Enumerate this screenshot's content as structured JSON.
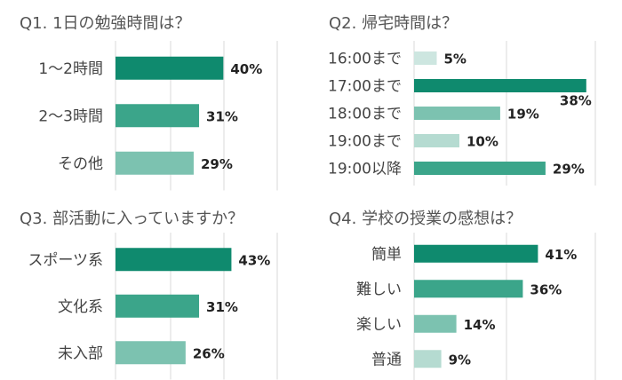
{
  "colors": {
    "c1": "#0f8a6e",
    "c2": "#3ba58a",
    "c3": "#7cc2b0",
    "c4": "#b5dbd1"
  },
  "chart_data": [
    {
      "type": "bar",
      "orientation": "horizontal",
      "title": "Q1. 1日の勉強時間は？",
      "categories": [
        "1〜2時間",
        "2〜3時間",
        "その他"
      ],
      "values": [
        40,
        31,
        29
      ],
      "value_labels": [
        "40%",
        "31%",
        "29%"
      ],
      "colors": [
        "#0f8a6e",
        "#3ba58a",
        "#7cc2b0"
      ],
      "xlim": [
        0,
        60
      ],
      "grid": true
    },
    {
      "type": "bar",
      "orientation": "horizontal",
      "title": "Q2. 帰宅時間は？",
      "categories": [
        "16:00まで",
        "17:00まで",
        "18:00まで",
        "19:00まで",
        "19:00以降"
      ],
      "values": [
        5,
        38,
        19,
        10,
        29
      ],
      "value_labels": [
        "5%",
        "38%",
        "19%",
        "10%",
        "29%"
      ],
      "colors": [
        "#cde6e0",
        "#0f8a6e",
        "#7cc2b0",
        "#b5dbd1",
        "#3ba58a"
      ],
      "xlim": [
        0,
        40
      ],
      "grid": true
    },
    {
      "type": "bar",
      "orientation": "horizontal",
      "title": "Q3. 部活動に入っていますか？",
      "categories": [
        "スポーツ系",
        "文化系",
        "未入部"
      ],
      "values": [
        43,
        31,
        26
      ],
      "value_labels": [
        "43%",
        "31%",
        "26%"
      ],
      "colors": [
        "#0f8a6e",
        "#3ba58a",
        "#7cc2b0"
      ],
      "xlim": [
        0,
        60
      ],
      "grid": true
    },
    {
      "type": "bar",
      "orientation": "horizontal",
      "title": "Q4. 学校の授業の感想は？",
      "categories": [
        "簡単",
        "難しい",
        "楽しい",
        "普通"
      ],
      "values": [
        41,
        36,
        14,
        9
      ],
      "value_labels": [
        "41%",
        "36%",
        "14%",
        "9%"
      ],
      "colors": [
        "#0f8a6e",
        "#3ba58a",
        "#7cc2b0",
        "#b5dbd1"
      ],
      "xlim": [
        0,
        60
      ],
      "grid": true
    }
  ]
}
